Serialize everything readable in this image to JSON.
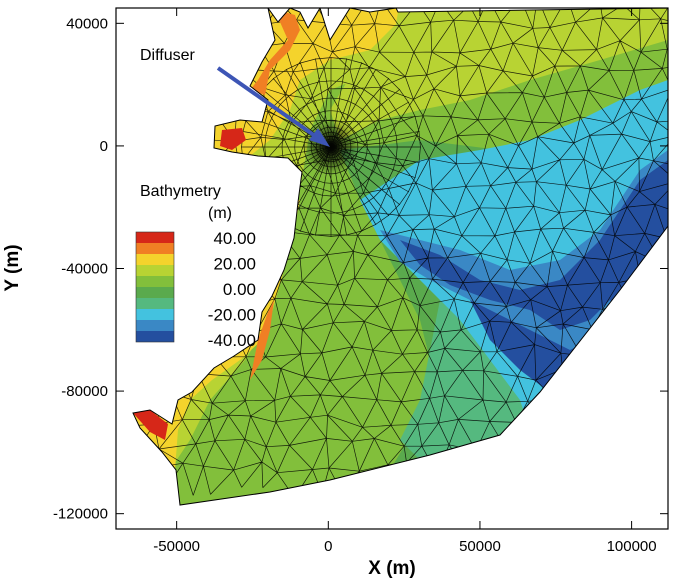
{
  "chart_data": {
    "type": "map",
    "title": "",
    "xlabel": "X (m)",
    "ylabel": "Y (m)",
    "xlim": [
      -70000,
      112000
    ],
    "ylim": [
      -125000,
      45000
    ],
    "x_ticks": [
      -50000,
      0,
      50000,
      100000
    ],
    "x_tick_labels": [
      "-50000",
      "0",
      "50000",
      "100000"
    ],
    "y_ticks": [
      40000,
      0,
      -40000,
      -80000,
      -120000
    ],
    "y_tick_labels": [
      "40000",
      "0",
      "-40000",
      "-80000",
      "-120000"
    ],
    "annotations": [
      {
        "text": "Diffuser",
        "x": 0,
        "y": 0
      }
    ],
    "legend": {
      "title_line1": "Bathymetry",
      "title_line2": "(m)",
      "entries": [
        {
          "label": "40.00",
          "value": 40
        },
        {
          "label": "20.00",
          "value": 20
        },
        {
          "label": "0.00",
          "value": 0
        },
        {
          "label": "-20.00",
          "value": -20
        },
        {
          "label": "-40.00",
          "value": -40
        }
      ],
      "colors": [
        "#d62718",
        "#f07f24",
        "#f4d32c",
        "#b8d333",
        "#82bf3b",
        "#5aaa4d",
        "#55b97f",
        "#43c2df",
        "#3a88c5",
        "#244f9f"
      ]
    },
    "color_bands": [
      {
        "range": [
          30,
          40
        ],
        "color": "#d62718"
      },
      {
        "range": [
          20,
          30
        ],
        "color": "#f07f24"
      },
      {
        "range": [
          10,
          20
        ],
        "color": "#f4d32c"
      },
      {
        "range": [
          0,
          10
        ],
        "color": "#b8d333"
      },
      {
        "range": [
          -10,
          0
        ],
        "color": "#82bf3b"
      },
      {
        "range": [
          -20,
          -10
        ],
        "color": "#5aaa4d"
      },
      {
        "range": [
          -30,
          -20
        ],
        "color": "#43c2df"
      },
      {
        "range": [
          -40,
          -30
        ],
        "color": "#244f9f"
      }
    ]
  }
}
